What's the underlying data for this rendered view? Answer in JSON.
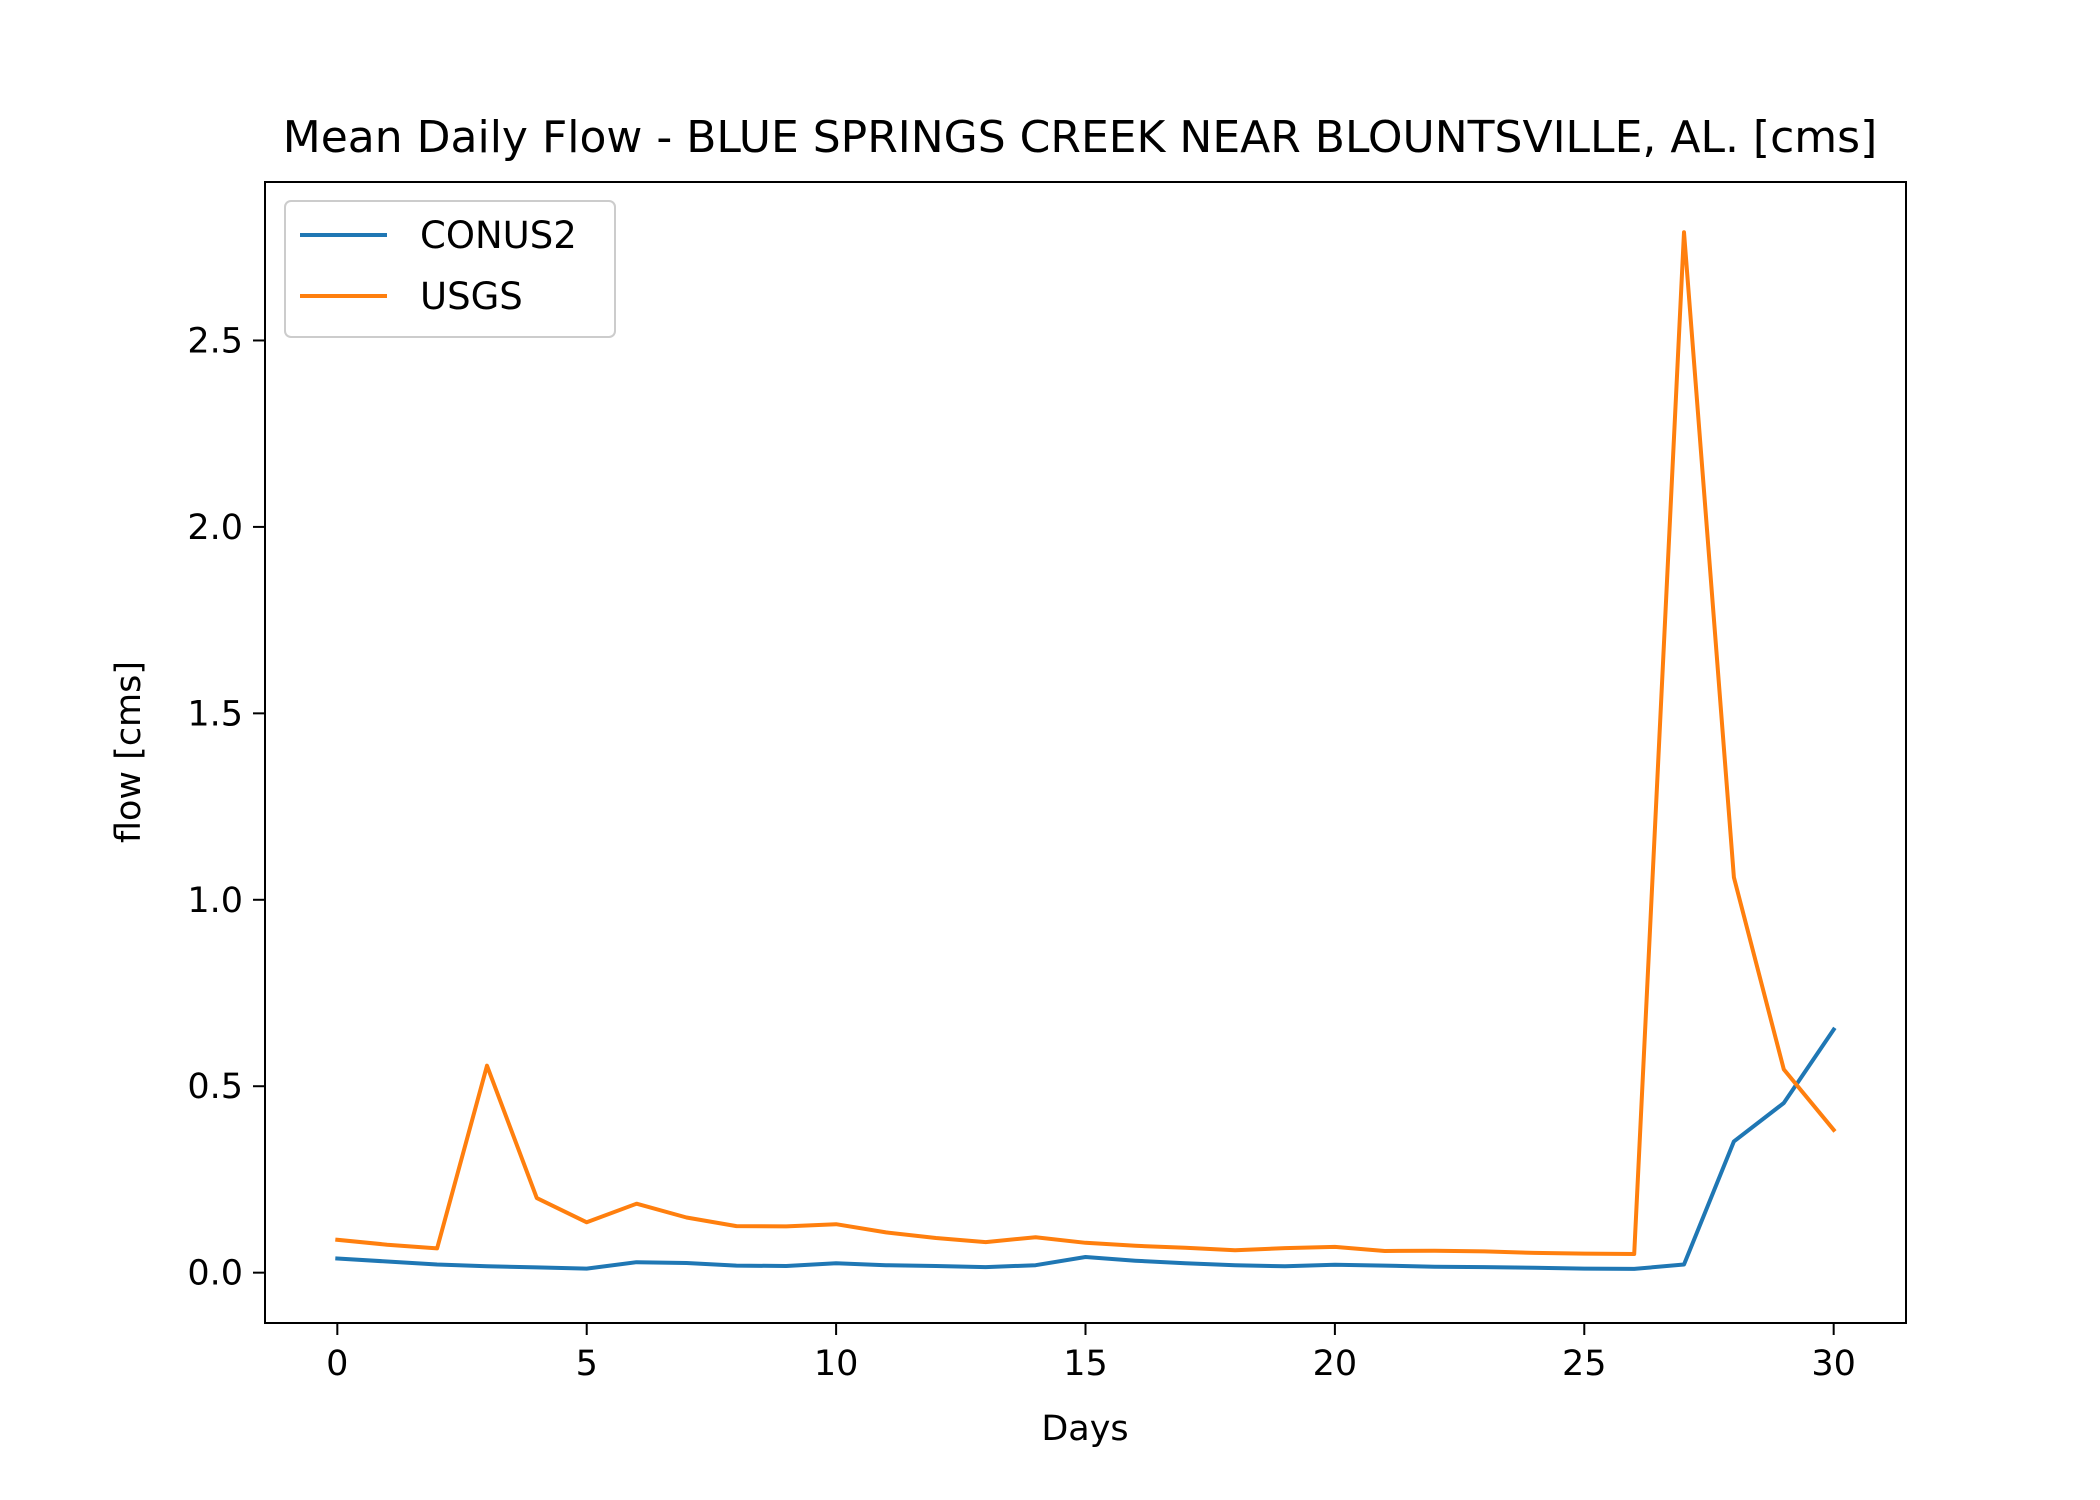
{
  "chart_data": {
    "type": "line",
    "title": "Mean Daily Flow - BLUE SPRINGS CREEK NEAR BLOUNTSVILLE, AL. [cms]",
    "xlabel": "Days",
    "ylabel": "flow [cms]",
    "xlim": [
      -1.45,
      31.45
    ],
    "ylim": [
      -0.135,
      2.925
    ],
    "xticks": [
      0,
      5,
      10,
      15,
      20,
      25,
      30
    ],
    "xtick_labels": [
      "0",
      "5",
      "10",
      "15",
      "20",
      "25",
      "30"
    ],
    "yticks": [
      0.0,
      0.5,
      1.0,
      1.5,
      2.0,
      2.5
    ],
    "ytick_labels": [
      "0.0",
      "0.5",
      "1.0",
      "1.5",
      "2.0",
      "2.5"
    ],
    "grid": false,
    "legend_position": "top-left",
    "x": [
      0,
      1,
      2,
      3,
      4,
      5,
      6,
      7,
      8,
      9,
      10,
      11,
      12,
      13,
      14,
      15,
      16,
      17,
      18,
      19,
      20,
      21,
      22,
      23,
      24,
      25,
      26,
      27,
      28,
      29,
      30
    ],
    "series": [
      {
        "name": "CONUS2",
        "color": "#1f77b4",
        "values": [
          0.038,
          0.03,
          0.022,
          0.017,
          0.014,
          0.011,
          0.028,
          0.026,
          0.019,
          0.018,
          0.025,
          0.02,
          0.018,
          0.015,
          0.02,
          0.042,
          0.032,
          0.025,
          0.02,
          0.017,
          0.021,
          0.019,
          0.016,
          0.015,
          0.013,
          0.011,
          0.01,
          0.022,
          0.352,
          0.455,
          0.652
        ]
      },
      {
        "name": "USGS",
        "color": "#ff7f0e",
        "values": [
          0.088,
          0.075,
          0.065,
          0.555,
          0.2,
          0.135,
          0.185,
          0.148,
          0.125,
          0.124,
          0.13,
          0.108,
          0.093,
          0.082,
          0.095,
          0.08,
          0.072,
          0.067,
          0.06,
          0.066,
          0.069,
          0.058,
          0.059,
          0.057,
          0.053,
          0.051,
          0.05,
          2.79,
          1.06,
          0.545,
          0.383
        ]
      }
    ]
  }
}
